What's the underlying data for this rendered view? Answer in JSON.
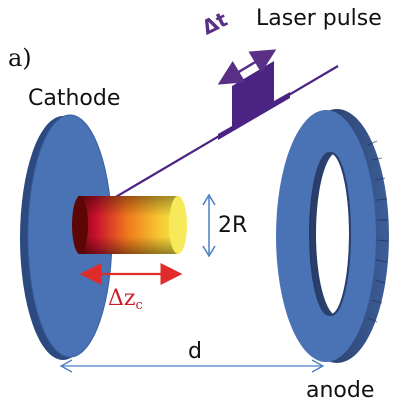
{
  "labels": {
    "panel": "a)",
    "cathode": "Cathode",
    "laser_pulse": "Laser pulse",
    "anode": "anode",
    "radius": "2R",
    "distance": "d",
    "delta_z_main": "Δz",
    "delta_z_sub": "c",
    "delta_t": "Δt"
  },
  "colors": {
    "electrode_blue": "#4a73b5",
    "laser_purple": "#4b2383",
    "bunch_red": "#c8102e",
    "bunch_yellow": "#f5e84a",
    "arrow_red": "#e02b2b",
    "arrow_blue": "#4a7fc4"
  }
}
